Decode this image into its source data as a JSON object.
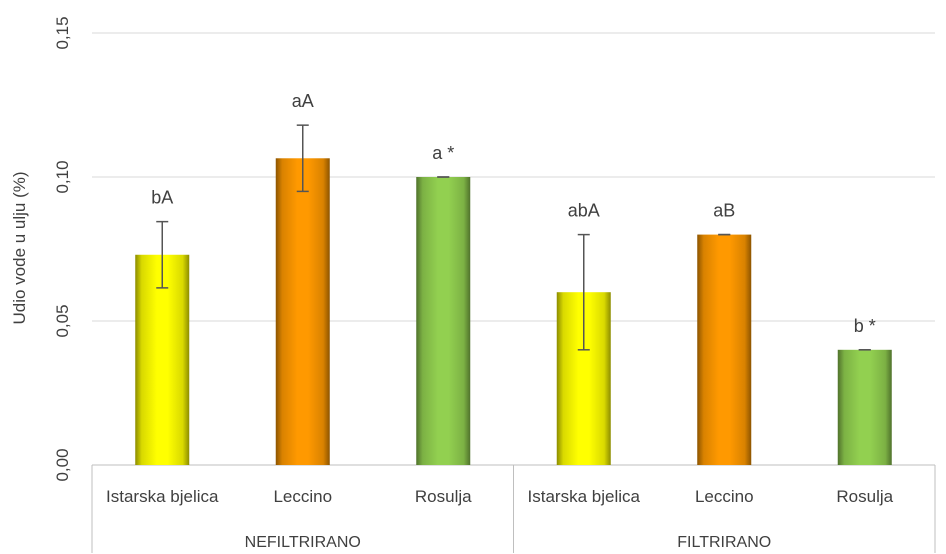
{
  "chart_data": {
    "type": "bar",
    "ylabel": "Udio vode u ulju (%)",
    "ylim": [
      0,
      0.15
    ],
    "yticks": [
      "0,00",
      "0,05",
      "0,10",
      "0,15"
    ],
    "grid": true,
    "groups": [
      {
        "name": "NEFILTRIRANO",
        "bars": [
          {
            "category": "Istarska bjelica",
            "value": 0.073,
            "error": 0.0115,
            "label": "bA",
            "color": "#ffff00"
          },
          {
            "category": "Leccino",
            "value": 0.1065,
            "error": 0.0115,
            "label": "aA",
            "color": "#ff9900"
          },
          {
            "category": "Rosulja",
            "value": 0.1,
            "error": 0.0,
            "label": "a *",
            "color": "#92d050"
          }
        ]
      },
      {
        "name": "FILTRIRANO",
        "bars": [
          {
            "category": "Istarska bjelica",
            "value": 0.06,
            "error": 0.02,
            "label": "abA",
            "color": "#ffff00"
          },
          {
            "category": "Leccino",
            "value": 0.08,
            "error": 0.0,
            "label": "aB",
            "color": "#ff9900"
          },
          {
            "category": "Rosulja",
            "value": 0.04,
            "error": 0.0,
            "label": "b *",
            "color": "#92d050"
          }
        ]
      }
    ]
  }
}
